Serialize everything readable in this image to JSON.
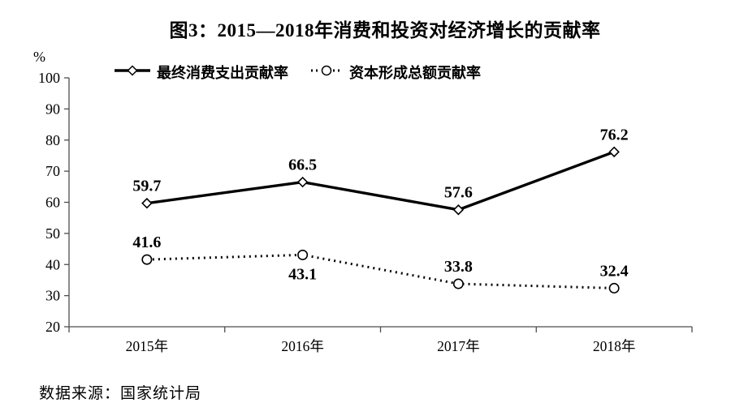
{
  "figure": {
    "title": "图3：2015—2018年消费和投资对经济增长的贡献率",
    "y_axis_unit": "%",
    "source": "数据来源：国家统计局"
  },
  "legend": {
    "position": "top",
    "items": [
      {
        "id": "final-consumption",
        "label": "最终消费支出贡献率",
        "marker": "diamond",
        "line": "solid"
      },
      {
        "id": "capital-formation",
        "label": "资本形成总额贡献率",
        "marker": "circle",
        "line": "dotted"
      }
    ]
  },
  "colors": {
    "line": "#000000",
    "text": "#000000",
    "axis": "#4d4d4d",
    "marker_fill": "#ffffff",
    "background": "#ffffff"
  },
  "chart_data": {
    "type": "line",
    "title": "图3：2015—2018年消费和投资对经济增长的贡献率",
    "categories": [
      "2015年",
      "2016年",
      "2017年",
      "2018年"
    ],
    "series": [
      {
        "id": "final-consumption",
        "name": "最终消费支出贡献率",
        "values": [
          59.7,
          66.5,
          57.6,
          76.2
        ],
        "data_labels": [
          "59.7",
          "66.5",
          "57.6",
          "76.2"
        ],
        "line_style": "solid",
        "marker": "diamond",
        "data_label_positions": [
          "above",
          "above",
          "above",
          "above"
        ]
      },
      {
        "id": "capital-formation",
        "name": "资本形成总额贡献率",
        "values": [
          41.6,
          43.1,
          33.8,
          32.4
        ],
        "data_labels": [
          "41.6",
          "43.1",
          "33.8",
          "32.4"
        ],
        "line_style": "dotted",
        "marker": "circle",
        "data_label_positions": [
          "above",
          "below",
          "above",
          "above"
        ]
      }
    ],
    "xlabel": "",
    "ylabel": "%",
    "ylim": [
      20,
      100
    ],
    "yticks": [
      20,
      30,
      40,
      50,
      60,
      70,
      80,
      90,
      100
    ],
    "ytick_step": 10,
    "grid": false,
    "legend_position": "top",
    "source": "数据来源：国家统计局"
  }
}
